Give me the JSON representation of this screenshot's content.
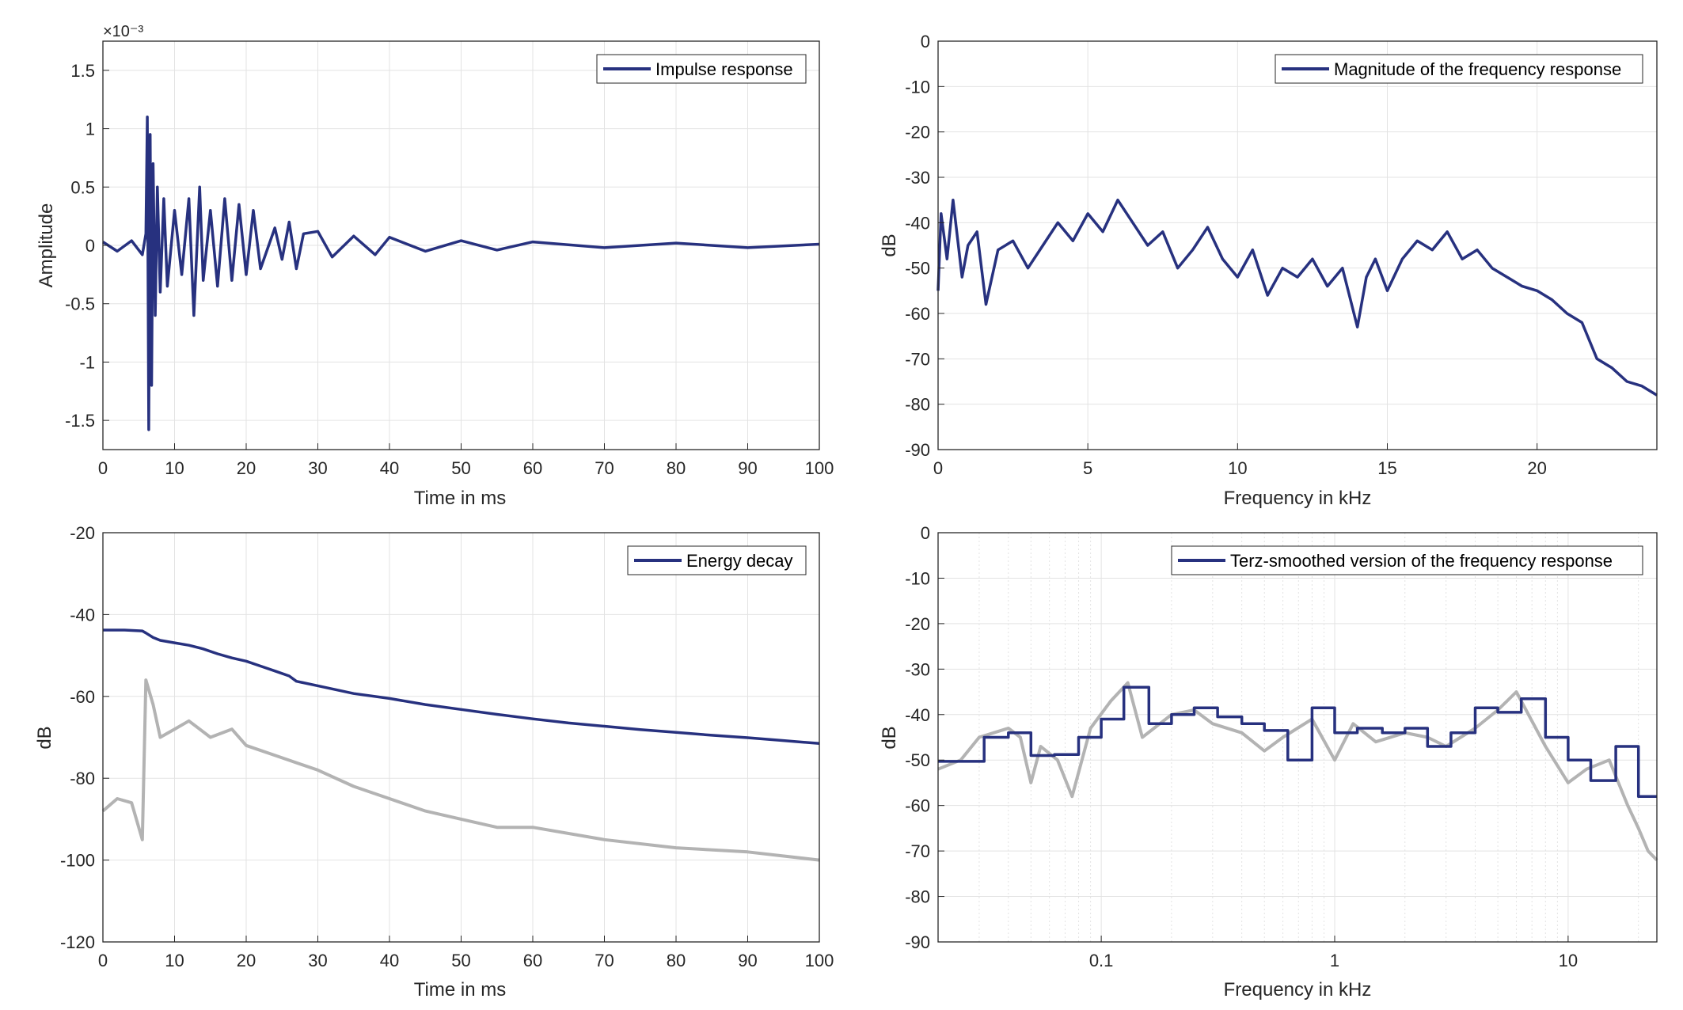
{
  "figure": {
    "background": "#ffffff"
  },
  "colors": {
    "main": "#27317f",
    "gray": "#b3b3b3",
    "grid": "#e3e3e3",
    "axis": "#262626"
  },
  "chart_data": [
    {
      "id": "impulse",
      "type": "line",
      "xlabel": "Time in ms",
      "ylabel": "Amplitude",
      "xlim": [
        0,
        100
      ],
      "ylim": [
        -0.00175,
        0.00175
      ],
      "x_ticks": [
        0,
        10,
        20,
        30,
        40,
        50,
        60,
        70,
        80,
        90,
        100
      ],
      "x_tick_labels": [
        "0",
        "10",
        "20",
        "30",
        "40",
        "50",
        "60",
        "70",
        "80",
        "90",
        "100"
      ],
      "y_ticks": [
        -0.0015,
        -0.001,
        -0.0005,
        0,
        0.0005,
        0.001,
        0.0015
      ],
      "y_tick_labels": [
        "-1.5",
        "-1",
        "-0.5",
        "0",
        "0.5",
        "1",
        "1.5"
      ],
      "exponent_label": "×10⁻³",
      "legend": {
        "placement": "top-right",
        "entries": [
          "Impulse response"
        ]
      },
      "grid": true,
      "series": [
        {
          "name": "Impulse response",
          "color": "#27317f",
          "x": [
            0,
            2,
            4,
            5.5,
            6,
            6.2,
            6.4,
            6.6,
            6.8,
            7.0,
            7.3,
            7.6,
            8.0,
            8.5,
            9.0,
            10,
            11,
            12,
            12.7,
            13.5,
            14,
            15,
            16,
            17,
            18,
            19,
            20,
            21,
            22,
            24,
            25,
            26,
            27,
            28,
            30,
            32,
            35,
            38,
            40,
            45,
            50,
            55,
            60,
            70,
            80,
            90,
            100
          ],
          "y": [
            3e-05,
            -5e-05,
            4e-05,
            -8e-05,
            0.0001,
            0.0011,
            -0.00158,
            0.00095,
            -0.0012,
            0.0007,
            -0.0006,
            0.0005,
            -0.0004,
            0.0004,
            -0.00035,
            0.0003,
            -0.00025,
            0.0004,
            -0.0006,
            0.0005,
            -0.0003,
            0.0003,
            -0.00035,
            0.0004,
            -0.0003,
            0.00035,
            -0.00025,
            0.0003,
            -0.0002,
            0.00015,
            -0.00012,
            0.0002,
            -0.0002,
            0.0001,
            0.00012,
            -0.0001,
            8e-05,
            -8e-05,
            7e-05,
            -5e-05,
            4e-05,
            -4e-05,
            3e-05,
            -2e-05,
            2e-05,
            -2e-05,
            1e-05
          ]
        }
      ]
    },
    {
      "id": "freq",
      "type": "line",
      "xlabel": "Frequency in kHz",
      "ylabel": "dB",
      "xlim": [
        0,
        24
      ],
      "ylim": [
        -90,
        0
      ],
      "x_ticks": [
        0,
        5,
        10,
        15,
        20
      ],
      "x_tick_labels": [
        "0",
        "5",
        "10",
        "15",
        "20"
      ],
      "y_ticks": [
        -90,
        -80,
        -70,
        -60,
        -50,
        -40,
        -30,
        -20,
        -10,
        0
      ],
      "y_tick_labels": [
        "-90",
        "-80",
        "-70",
        "-60",
        "-50",
        "-40",
        "-30",
        "-20",
        "-10",
        "0"
      ],
      "legend": {
        "placement": "top-right",
        "entries": [
          "Magnitude of the frequency response"
        ]
      },
      "grid": true,
      "series": [
        {
          "name": "Magnitude of the frequency response",
          "color": "#27317f",
          "x": [
            0,
            0.1,
            0.3,
            0.5,
            0.8,
            1,
            1.3,
            1.6,
            2,
            2.5,
            3,
            3.5,
            4,
            4.5,
            5,
            5.5,
            6,
            6.5,
            7,
            7.5,
            8,
            8.5,
            9,
            9.5,
            10,
            10.5,
            11,
            11.5,
            12,
            12.5,
            13,
            13.5,
            14,
            14.3,
            14.6,
            15,
            15.5,
            16,
            16.5,
            17,
            17.5,
            18,
            18.5,
            19,
            19.5,
            20,
            20.5,
            21,
            21.5,
            22,
            22.5,
            23,
            23.5,
            24
          ],
          "y": [
            -55,
            -38,
            -48,
            -35,
            -52,
            -45,
            -42,
            -58,
            -46,
            -44,
            -50,
            -45,
            -40,
            -44,
            -38,
            -42,
            -35,
            -40,
            -45,
            -42,
            -50,
            -46,
            -41,
            -48,
            -52,
            -46,
            -56,
            -50,
            -52,
            -48,
            -54,
            -50,
            -63,
            -52,
            -48,
            -55,
            -48,
            -44,
            -46,
            -42,
            -48,
            -46,
            -50,
            -52,
            -54,
            -55,
            -57,
            -60,
            -62,
            -70,
            -72,
            -75,
            -76,
            -78
          ]
        }
      ]
    },
    {
      "id": "decay",
      "type": "line",
      "xlabel": "Time in ms",
      "ylabel": "dB",
      "xlim": [
        0,
        100
      ],
      "ylim": [
        -120,
        -20
      ],
      "x_ticks": [
        0,
        10,
        20,
        30,
        40,
        50,
        60,
        70,
        80,
        90,
        100
      ],
      "x_tick_labels": [
        "0",
        "10",
        "20",
        "30",
        "40",
        "50",
        "60",
        "70",
        "80",
        "90",
        "100"
      ],
      "y_ticks": [
        -120,
        -100,
        -80,
        -60,
        -40,
        -20
      ],
      "y_tick_labels": [
        "-120",
        "-100",
        "-80",
        "-60",
        "-40",
        "-20"
      ],
      "legend": {
        "placement": "top-right",
        "entries": [
          "Energy decay"
        ]
      },
      "grid": true,
      "series": [
        {
          "name": "Energy decay",
          "color": "#27317f",
          "x": [
            0,
            3,
            5.5,
            6,
            7,
            8,
            10,
            12,
            14,
            16,
            18,
            20,
            22,
            24,
            26,
            27,
            30,
            35,
            40,
            45,
            50,
            55,
            60,
            65,
            70,
            75,
            80,
            85,
            90,
            95,
            100
          ],
          "y": [
            -43.8,
            -43.8,
            -44,
            -44.5,
            -45.6,
            -46.3,
            -46.9,
            -47.5,
            -48.4,
            -49.6,
            -50.6,
            -51.4,
            -52.6,
            -53.8,
            -55,
            -56.3,
            -57.4,
            -59.3,
            -60.5,
            -62,
            -63.2,
            -64.4,
            -65.5,
            -66.5,
            -67.3,
            -68.1,
            -68.8,
            -69.5,
            -70.1,
            -70.8,
            -71.5
          ]
        },
        {
          "color": "#b3b3b3",
          "x": [
            0,
            2,
            4,
            5.5,
            6,
            7,
            8,
            10,
            12,
            15,
            18,
            20,
            25,
            30,
            35,
            40,
            45,
            50,
            55,
            60,
            70,
            80,
            90,
            100
          ],
          "y": [
            -88,
            -85,
            -86,
            -95,
            -56,
            -62,
            -70,
            -68,
            -66,
            -70,
            -68,
            -72,
            -75,
            -78,
            -82,
            -85,
            -88,
            -90,
            -92,
            -92,
            -95,
            -97,
            -98,
            -100
          ]
        }
      ]
    },
    {
      "id": "terz",
      "type": "line",
      "xlabel": "Frequency in kHz",
      "ylabel": "dB",
      "xscale": "log",
      "xlim": [
        0.02,
        24
      ],
      "ylim": [
        -90,
        0
      ],
      "x_ticks": [
        0.1,
        1,
        10
      ],
      "x_tick_labels": [
        "0.1",
        "1",
        "10"
      ],
      "y_ticks": [
        -90,
        -80,
        -70,
        -60,
        -50,
        -40,
        -30,
        -20,
        -10,
        0
      ],
      "y_tick_labels": [
        "-90",
        "-80",
        "-70",
        "-60",
        "-50",
        "-40",
        "-30",
        "-20",
        "-10",
        "0"
      ],
      "legend": {
        "placement": "top-right",
        "entries": [
          "Terz-smoothed version of the frequency response"
        ]
      },
      "grid": true,
      "series": [
        {
          "name": "Terz-smoothed version of the frequency response",
          "color": "#27317f",
          "x": [
            0.02,
            0.025,
            0.0315,
            0.04,
            0.05,
            0.063,
            0.08,
            0.1,
            0.125,
            0.16,
            0.2,
            0.25,
            0.315,
            0.4,
            0.5,
            0.63,
            0.8,
            1,
            1.25,
            1.6,
            2,
            2.5,
            3.15,
            4,
            5,
            6.3,
            8,
            10,
            12.5,
            16,
            20,
            24
          ],
          "y": [
            -50.3,
            -50.3,
            -45,
            -44,
            -49,
            -48.8,
            -45,
            -41,
            -34,
            -42,
            -40,
            -38.5,
            -40.5,
            -42,
            -43.5,
            -50,
            -38.5,
            -44,
            -43,
            -44,
            -43,
            -47,
            -44,
            -38.5,
            -39.5,
            -36.5,
            -45,
            -50,
            -54.5,
            -47,
            -58,
            -58
          ]
        },
        {
          "color": "#b3b3b3",
          "x": [
            0.02,
            0.025,
            0.03,
            0.04,
            0.045,
            0.05,
            0.055,
            0.065,
            0.075,
            0.09,
            0.11,
            0.13,
            0.15,
            0.2,
            0.25,
            0.3,
            0.4,
            0.5,
            0.6,
            0.8,
            1,
            1.2,
            1.5,
            2,
            2.5,
            3,
            4,
            5,
            6,
            8,
            10,
            12,
            15,
            18,
            20,
            22,
            24
          ],
          "y": [
            -52,
            -50,
            -45,
            -43,
            -45,
            -55,
            -47,
            -50,
            -58,
            -43,
            -37,
            -33,
            -45,
            -40,
            -39,
            -42,
            -44,
            -48,
            -45,
            -41,
            -50,
            -42,
            -46,
            -44,
            -45,
            -47,
            -43,
            -39,
            -35,
            -47,
            -55,
            -52,
            -50,
            -60,
            -65,
            -70,
            -72
          ]
        }
      ]
    }
  ]
}
